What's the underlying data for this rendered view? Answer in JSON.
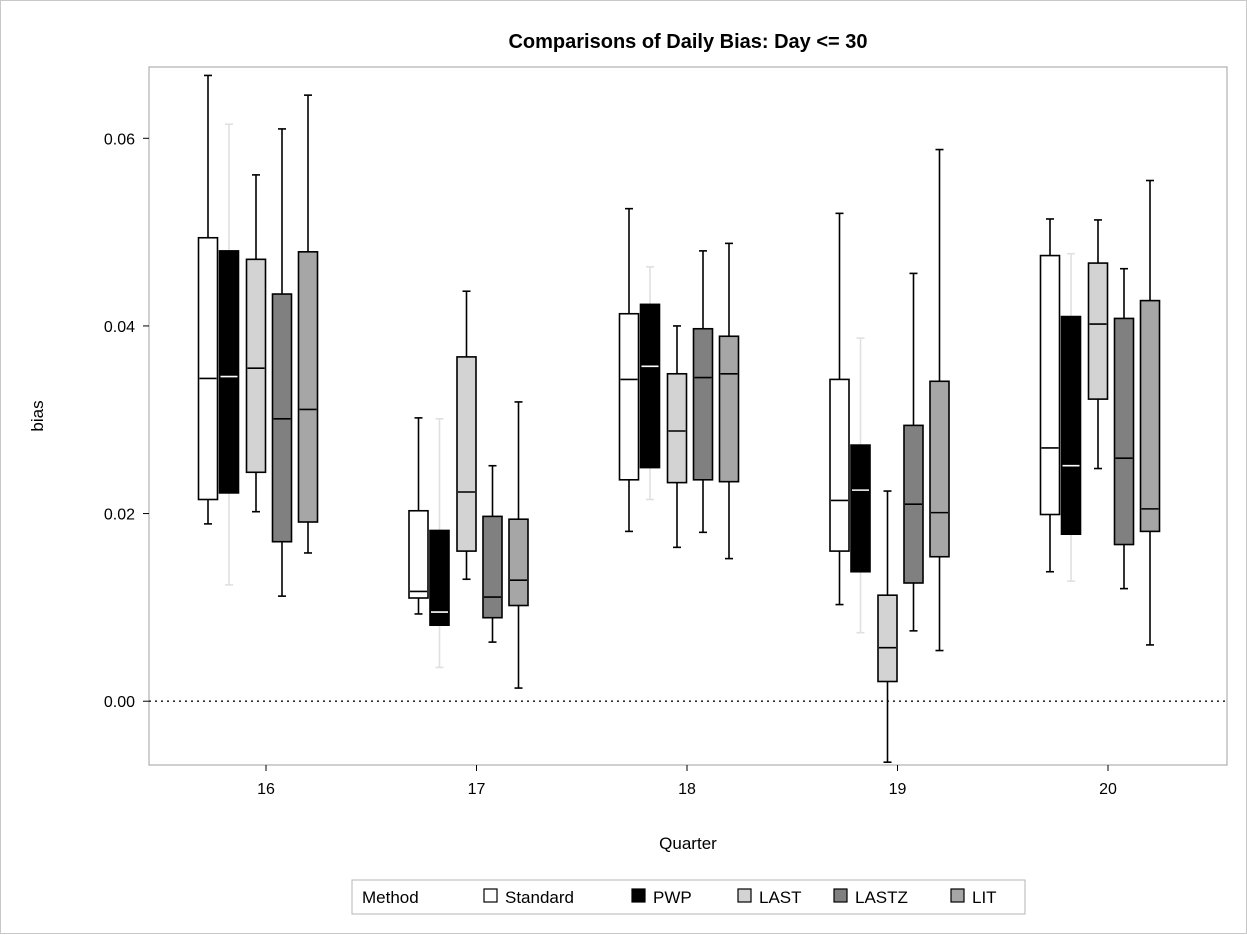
{
  "chart_data": {
    "type": "box",
    "title": "Comparisons of Daily Bias: Day <= 30",
    "xlabel": "Quarter",
    "ylabel": "bias",
    "categories": [
      "16",
      "17",
      "18",
      "19",
      "20"
    ],
    "ylim": [
      -0.0068,
      0.0676
    ],
    "yticks": [
      "0.00",
      "0.02",
      "0.04",
      "0.06"
    ],
    "ytick_values": [
      0.0,
      0.02,
      0.04,
      0.06
    ],
    "reference_line": 0.0,
    "grid": false,
    "legend": {
      "position": "bottom",
      "title": "Method",
      "entries": [
        "Standard",
        "PWP",
        "LAST",
        "LASTZ",
        "LIT"
      ]
    },
    "series": [
      {
        "name": "Standard",
        "fill": "#ffffff",
        "edge": "#000000",
        "median_color": "#000000",
        "boxes": [
          {
            "min": 0.0189,
            "q1": 0.0215,
            "median": 0.0344,
            "q3": 0.0494,
            "max": 0.0667
          },
          {
            "min": 0.0093,
            "q1": 0.011,
            "median": 0.0117,
            "q3": 0.0203,
            "max": 0.0302
          },
          {
            "min": 0.0181,
            "q1": 0.0236,
            "median": 0.0343,
            "q3": 0.0413,
            "max": 0.0525
          },
          {
            "min": 0.0103,
            "q1": 0.016,
            "median": 0.0214,
            "q3": 0.0343,
            "max": 0.052
          },
          {
            "min": 0.0138,
            "q1": 0.0199,
            "median": 0.027,
            "q3": 0.0475,
            "max": 0.0514
          }
        ]
      },
      {
        "name": "PWP",
        "fill": "#000000",
        "edge": "#000000",
        "median_color": "#ffffff",
        "whisker_color": "#e0e0e0",
        "boxes": [
          {
            "min": 0.0124,
            "q1": 0.0222,
            "median": 0.0346,
            "q3": 0.048,
            "max": 0.0615
          },
          {
            "min": 0.0036,
            "q1": 0.0081,
            "median": 0.0095,
            "q3": 0.0182,
            "max": 0.0301
          },
          {
            "min": 0.0215,
            "q1": 0.0249,
            "median": 0.0357,
            "q3": 0.0423,
            "max": 0.0463
          },
          {
            "min": 0.0073,
            "q1": 0.0138,
            "median": 0.0225,
            "q3": 0.0273,
            "max": 0.0387
          },
          {
            "min": 0.0128,
            "q1": 0.0178,
            "median": 0.0251,
            "q3": 0.041,
            "max": 0.0477
          }
        ]
      },
      {
        "name": "LAST",
        "fill": "#d3d3d3",
        "edge": "#000000",
        "median_color": "#000000",
        "boxes": [
          {
            "min": 0.0202,
            "q1": 0.0244,
            "median": 0.0355,
            "q3": 0.0471,
            "max": 0.0561
          },
          {
            "min": 0.013,
            "q1": 0.016,
            "median": 0.0223,
            "q3": 0.0367,
            "max": 0.0437
          },
          {
            "min": 0.0164,
            "q1": 0.0233,
            "median": 0.0288,
            "q3": 0.0349,
            "max": 0.04
          },
          {
            "min": -0.0065,
            "q1": 0.0021,
            "median": 0.0057,
            "q3": 0.0113,
            "max": 0.0224
          },
          {
            "min": 0.0248,
            "q1": 0.0322,
            "median": 0.0402,
            "q3": 0.0467,
            "max": 0.0513
          }
        ]
      },
      {
        "name": "LASTZ",
        "fill": "#808080",
        "edge": "#000000",
        "median_color": "#000000",
        "boxes": [
          {
            "min": 0.0112,
            "q1": 0.017,
            "median": 0.0301,
            "q3": 0.0434,
            "max": 0.061
          },
          {
            "min": 0.0063,
            "q1": 0.0089,
            "median": 0.0111,
            "q3": 0.0197,
            "max": 0.0251
          },
          {
            "min": 0.018,
            "q1": 0.0236,
            "median": 0.0345,
            "q3": 0.0397,
            "max": 0.048
          },
          {
            "min": 0.0075,
            "q1": 0.0126,
            "median": 0.021,
            "q3": 0.0294,
            "max": 0.0456
          },
          {
            "min": 0.012,
            "q1": 0.0167,
            "median": 0.0259,
            "q3": 0.0408,
            "max": 0.0461
          }
        ]
      },
      {
        "name": "LIT",
        "fill": "#a6a6a6",
        "edge": "#000000",
        "median_color": "#000000",
        "boxes": [
          {
            "min": 0.0158,
            "q1": 0.0191,
            "median": 0.0311,
            "q3": 0.0479,
            "max": 0.0646
          },
          {
            "min": 0.0014,
            "q1": 0.0102,
            "median": 0.0129,
            "q3": 0.0194,
            "max": 0.0319
          },
          {
            "min": 0.0152,
            "q1": 0.0234,
            "median": 0.0349,
            "q3": 0.0389,
            "max": 0.0488
          },
          {
            "min": 0.0054,
            "q1": 0.0154,
            "median": 0.0201,
            "q3": 0.0341,
            "max": 0.0588
          },
          {
            "min": 0.006,
            "q1": 0.0181,
            "median": 0.0205,
            "q3": 0.0427,
            "max": 0.0555
          }
        ]
      }
    ]
  }
}
